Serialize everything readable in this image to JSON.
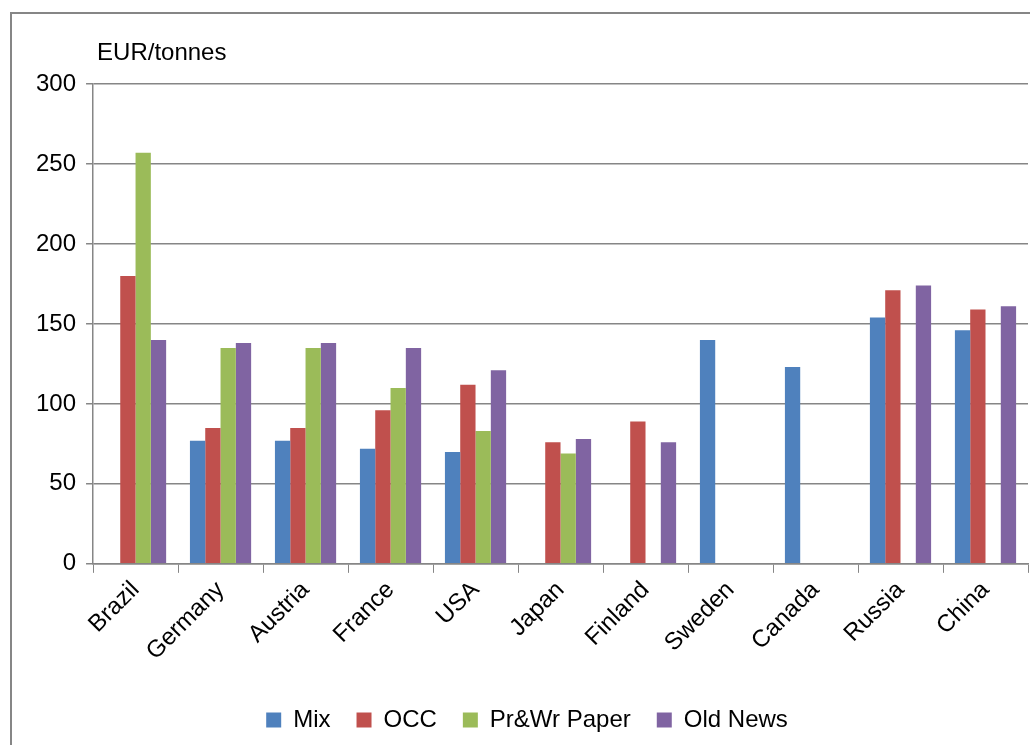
{
  "chart_data": {
    "type": "bar",
    "ylabel": "EUR/tonnes",
    "categories": [
      "Brazil",
      "Germany",
      "Austria",
      "France",
      "USA",
      "Japan",
      "Finland",
      "Sweden",
      "Canada",
      "Russia",
      "China"
    ],
    "series": [
      {
        "name": "Mix",
        "color": "#4f81bd",
        "values": [
          null,
          77,
          77,
          72,
          70,
          null,
          null,
          140,
          123,
          154,
          146
        ]
      },
      {
        "name": "OCC",
        "color": "#c0504d",
        "values": [
          180,
          85,
          85,
          96,
          112,
          76,
          89,
          null,
          null,
          171,
          159
        ]
      },
      {
        "name": "Pr&Wr Paper",
        "color": "#9bbb59",
        "values": [
          257,
          135,
          135,
          110,
          83,
          69,
          null,
          null,
          null,
          null,
          null
        ]
      },
      {
        "name": "Old News",
        "color": "#8064a2",
        "values": [
          140,
          138,
          138,
          135,
          121,
          78,
          76,
          null,
          null,
          174,
          161
        ]
      }
    ],
    "ylim": [
      0,
      300
    ],
    "yticks": [
      0,
      50,
      100,
      150,
      200,
      250,
      300
    ],
    "grid": "y",
    "legend": "bottom"
  }
}
